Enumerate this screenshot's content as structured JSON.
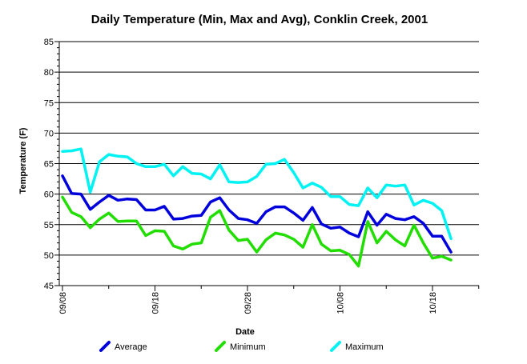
{
  "chart_data": {
    "type": "line",
    "title": "Daily Temperature (Min, Max and Avg), Conklin Creek, 2001",
    "xlabel": "Date",
    "ylabel": "Temperature (F)",
    "ylim": [
      45,
      85
    ],
    "yticks": [
      45,
      50,
      55,
      60,
      65,
      70,
      75,
      80,
      85
    ],
    "x_tick_labels": [
      "09/08",
      "09/18",
      "09/28",
      "10/08",
      "10/18"
    ],
    "x_tick_days": [
      0,
      10,
      20,
      30,
      40
    ],
    "grid": "horizontal",
    "legend_position": "bottom",
    "series": [
      {
        "name": "Average",
        "color": "#0000dd",
        "values": [
          63.0,
          60.1,
          60.0,
          57.5,
          58.7,
          59.8,
          59.0,
          59.2,
          59.1,
          57.4,
          57.4,
          58.0,
          55.9,
          56.0,
          56.4,
          56.5,
          58.7,
          59.4,
          57.4,
          56.0,
          55.8,
          55.2,
          57.1,
          57.9,
          57.9,
          56.9,
          55.7,
          57.8,
          55.1,
          54.4,
          54.6,
          53.6,
          53.0,
          57.1,
          54.9,
          56.7,
          56.0,
          55.8,
          56.3,
          55.2,
          53.1,
          53.1,
          50.5
        ]
      },
      {
        "name": "Minimum",
        "color": "#22dd00",
        "values": [
          59.5,
          57.0,
          56.3,
          54.5,
          55.9,
          56.9,
          55.5,
          55.6,
          55.6,
          53.2,
          54.0,
          53.9,
          51.5,
          51.0,
          51.8,
          52.0,
          56.2,
          57.3,
          54.1,
          52.4,
          52.6,
          50.5,
          52.5,
          53.6,
          53.3,
          52.6,
          51.3,
          55.0,
          51.8,
          50.7,
          50.8,
          50.1,
          48.2,
          55.5,
          52.0,
          53.9,
          52.5,
          51.5,
          54.9,
          52.0,
          49.5,
          49.8,
          49.2
        ]
      },
      {
        "name": "Maximum",
        "color": "#00f2f2",
        "values": [
          67.0,
          67.1,
          67.4,
          60.3,
          65.3,
          66.5,
          66.2,
          66.1,
          65.0,
          64.5,
          64.5,
          64.9,
          63.0,
          64.5,
          63.4,
          63.3,
          62.5,
          64.8,
          62.0,
          61.9,
          62.0,
          62.9,
          64.9,
          65.0,
          65.7,
          63.5,
          61.0,
          61.8,
          61.1,
          59.6,
          59.6,
          58.3,
          58.1,
          61.0,
          59.4,
          61.5,
          61.3,
          61.5,
          58.2,
          59.0,
          58.5,
          57.3,
          52.7
        ]
      }
    ]
  }
}
